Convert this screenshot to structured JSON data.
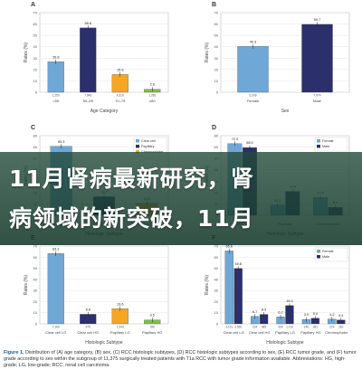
{
  "panels": [
    {
      "letter": "A",
      "type": "bar",
      "xlabel": "Age Category",
      "ylabel": "Rates (%)",
      "categories": [
        "<50",
        "50–69",
        "70–79",
        "≥80"
      ],
      "values": [
        26.8,
        56.6,
        15.6,
        2.6
      ],
      "n": [
        "1,250",
        "7,946",
        "4,319",
        "1,266"
      ],
      "colors": [
        "#6fa8d6",
        "#2b2f6b",
        "#f5a623",
        "#7cc142"
      ],
      "ylim": [
        0,
        70
      ]
    },
    {
      "letter": "B",
      "type": "bar",
      "xlabel": "Sex",
      "ylabel": "Rates (%)",
      "categories": [
        "Female",
        "Male"
      ],
      "values": [
        40.3,
        59.7
      ],
      "n": [
        "5,399",
        "7,974"
      ],
      "colors": [
        "#6fa8d6",
        "#2b2f6b"
      ],
      "ylim": [
        0,
        70
      ]
    },
    {
      "letter": "C",
      "type": "bar",
      "xlabel": "Histologic Subtype",
      "ylabel": "Rates (%)",
      "categories": [
        "Clear cell",
        "Papillary",
        "Chromophobe"
      ],
      "values": [
        69.3,
        18.7,
        12.0
      ],
      "n": [
        "",
        "",
        ""
      ],
      "colors": [
        "#6fa8d6",
        "#2b2f6b",
        "#f5a623"
      ],
      "ylim": [
        0,
        80
      ],
      "legend": [
        "Clear cell",
        "Papillary",
        "Chromophobe"
      ]
    },
    {
      "letter": "D",
      "type": "grouped_bar",
      "xlabel": "Histologic Subtype",
      "ylabel": "Rates (%)",
      "categories": [
        "Clear cell",
        "Papillary",
        "Chromophobe"
      ],
      "series": [
        {
          "name": "Female",
          "values": [
            72.0,
            10.2,
            17.8
          ],
          "color": "#6fa8d6"
        },
        {
          "name": "Male",
          "values": [
            68.0,
            24.0,
            8.0
          ],
          "color": "#2b2f6b"
        }
      ],
      "ylim": [
        0,
        80
      ],
      "legend": [
        "Female",
        "Male"
      ]
    },
    {
      "letter": "E",
      "type": "bar",
      "xlabel": "Histologic Subtype",
      "ylabel": "Rates (%)",
      "categories": [
        "Clear cell LG",
        "Clear cell HG",
        "Papillary LG",
        "Papillary HG"
      ],
      "values": [
        63.2,
        8.6,
        13.6,
        3.5
      ],
      "n": [
        "7,166",
        "975",
        "1,544",
        "396"
      ],
      "colors": [
        "#6fa8d6",
        "#2b2f6b",
        "#f5a623",
        "#7cc142"
      ],
      "ylim": [
        0,
        70
      ]
    },
    {
      "letter": "F",
      "type": "grouped_bar",
      "xlabel": "Histologic Subtype",
      "ylabel": "Rates (%)",
      "categories": [
        "Clear cell LG",
        "Clear cell HG",
        "Papillary LG",
        "Papillary HG",
        "Chromophobe"
      ],
      "series": [
        {
          "name": "Female",
          "values": [
            65.6,
            6.7,
            6.2,
            3.9,
            4.2
          ],
          "color": "#6fa8d6"
        },
        {
          "name": "Male",
          "values": [
            49.8,
            8.5,
            16.4,
            5.0,
            3.4
          ],
          "color": "#2b2f6b"
        }
      ],
      "n": [
        "3,151",
        "3,560",
        "224",
        "483",
        "339",
        "1,119",
        "140",
        "381",
        "224",
        "262"
      ],
      "ylim": [
        0,
        70
      ],
      "legend": [
        "Female",
        "Male"
      ]
    }
  ],
  "chart_data": [
    {
      "type": "bar",
      "categories": [
        "<50",
        "50–69",
        "70–79",
        "≥80"
      ],
      "values": [
        26.8,
        56.6,
        15.6,
        2.6
      ],
      "xlabel": "Age Category",
      "ylabel": "Rates (%)",
      "ylim": [
        0,
        70
      ]
    },
    {
      "type": "bar",
      "categories": [
        "Female",
        "Male"
      ],
      "values": [
        40.3,
        59.7
      ],
      "xlabel": "Sex",
      "ylabel": "Rates (%)",
      "ylim": [
        0,
        70
      ]
    },
    {
      "type": "bar",
      "categories": [
        "Clear cell",
        "Papillary",
        "Chromophobe"
      ],
      "values": [
        69.3,
        18.7,
        12.0
      ],
      "xlabel": "Histologic Subtype",
      "ylabel": "Rates (%)",
      "ylim": [
        0,
        80
      ]
    },
    {
      "type": "bar",
      "categories": [
        "Clear cell",
        "Papillary",
        "Chromophobe"
      ],
      "series": [
        {
          "name": "Female",
          "values": [
            72.0,
            10.2,
            17.8
          ]
        },
        {
          "name": "Male",
          "values": [
            68.0,
            24.0,
            8.0
          ]
        }
      ],
      "xlabel": "Histologic Subtype",
      "ylabel": "Rates (%)",
      "ylim": [
        0,
        80
      ]
    },
    {
      "type": "bar",
      "categories": [
        "Clear cell LG",
        "Clear cell HG",
        "Papillary LG",
        "Papillary HG"
      ],
      "values": [
        63.2,
        8.6,
        13.6,
        3.5
      ],
      "xlabel": "Histologic Subtype",
      "ylabel": "Rates (%)",
      "ylim": [
        0,
        70
      ]
    },
    {
      "type": "bar",
      "categories": [
        "Clear cell LG",
        "Clear cell HG",
        "Papillary LG",
        "Papillary HG",
        "Chromophobe"
      ],
      "series": [
        {
          "name": "Female",
          "values": [
            65.6,
            6.7,
            6.2,
            3.9,
            4.2
          ]
        },
        {
          "name": "Male",
          "values": [
            49.8,
            8.5,
            16.4,
            5.0,
            3.4
          ]
        }
      ],
      "xlabel": "Histologic Subtype",
      "ylabel": "Rates (%)",
      "ylim": [
        0,
        70
      ]
    }
  ],
  "banner": {
    "line1": "11月肾病最新研究，肾",
    "line2": "病领域的新突破，11月"
  },
  "caption": {
    "label": "Figure 1.",
    "text": " Distribution of (A) age category, (B) sex, (C) RCC histologic subtypes, (D) RCC histologic subtypes according to sex, (E) RCC tumor grade, and (F) tumor grade according to sex within the subgroup of 11,375 surgically treated patients with T1a RCC with tumor grade information available. Abbreviations: HG, high-grade; LG, low-grade; RCC, renal cell carcinoma."
  }
}
